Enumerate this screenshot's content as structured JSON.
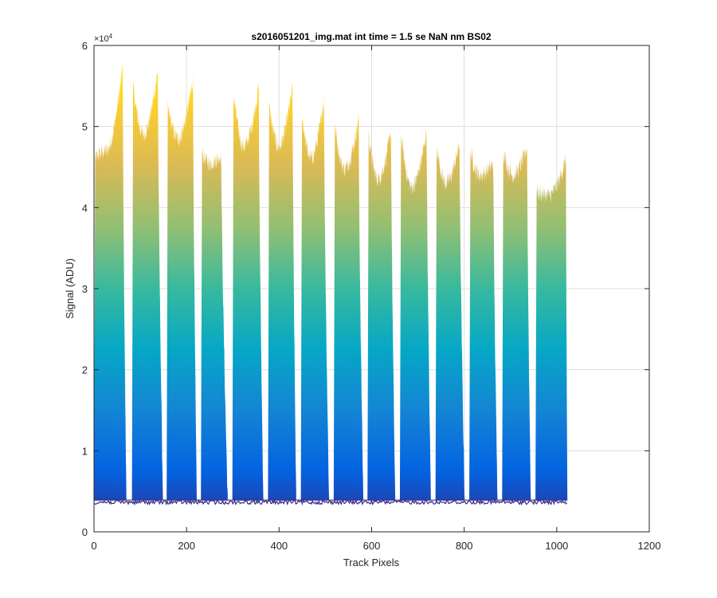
{
  "chart_data": {
    "type": "area",
    "title": "s2016051201_img.mat int time = 1.5 se  NaN nm BS02",
    "xlabel": "Track Pixels",
    "ylabel": "Signal (ADU)",
    "xlim": [
      0,
      1200
    ],
    "ylim": [
      0,
      60000
    ],
    "x_ticks": [
      0,
      200,
      400,
      600,
      800,
      1000,
      1200
    ],
    "x_tick_labels": [
      "0",
      "200",
      "400",
      "600",
      "800",
      "1000",
      "1200"
    ],
    "y_ticks": [
      0,
      10000,
      20000,
      30000,
      40000,
      50000,
      60000
    ],
    "y_tick_labels": [
      "0",
      "1",
      "2",
      "3",
      "4",
      "5",
      "6"
    ],
    "y_exponent_label": "×10",
    "y_exponent_power": "4",
    "grid": true,
    "colormap": "parula",
    "colormap_stops": [
      "#352a87",
      "#0363e1",
      "#1485d4",
      "#06a7c6",
      "#38b99e",
      "#92bf73",
      "#d9ba56",
      "#fcce2e",
      "#f9fb0e"
    ],
    "baseline": 3900,
    "signal_floor": 500,
    "segments": [
      {
        "start": 0,
        "end": 70,
        "peak_x": 62,
        "left": 46000,
        "min": 47000,
        "right": 57500
      },
      {
        "start": 82,
        "end": 149,
        "peak_x": 138,
        "left": 56000,
        "min": 49000,
        "right": 57000
      },
      {
        "start": 157,
        "end": 222,
        "peak_x": 214,
        "left": 53000,
        "min": 48500,
        "right": 56000
      },
      {
        "start": 231,
        "end": 289,
        "peak_x": 275,
        "left": 47000,
        "min": 45500,
        "right": 46500
      },
      {
        "start": 299,
        "end": 366,
        "peak_x": 356,
        "left": 55000,
        "min": 47500,
        "right": 55000
      },
      {
        "start": 376,
        "end": 437,
        "peak_x": 429,
        "left": 53500,
        "min": 47500,
        "right": 55000
      },
      {
        "start": 447,
        "end": 508,
        "peak_x": 497,
        "left": 52500,
        "min": 46000,
        "right": 53500
      },
      {
        "start": 518,
        "end": 582,
        "peak_x": 572,
        "left": 51000,
        "min": 44800,
        "right": 51000
      },
      {
        "start": 591,
        "end": 651,
        "peak_x": 642,
        "left": 50000,
        "min": 43500,
        "right": 49500
      },
      {
        "start": 661,
        "end": 728,
        "peak_x": 719,
        "left": 50000,
        "min": 42500,
        "right": 49500
      },
      {
        "start": 738,
        "end": 801,
        "peak_x": 790,
        "left": 48500,
        "min": 43000,
        "right": 48000
      },
      {
        "start": 811,
        "end": 872,
        "peak_x": 863,
        "left": 47500,
        "min": 44000,
        "right": 45500
      },
      {
        "start": 882,
        "end": 944,
        "peak_x": 936,
        "left": 47500,
        "min": 44000,
        "right": 47500
      },
      {
        "start": 954,
        "end": 1023,
        "peak_x": 1020,
        "left": 42000,
        "min": 41500,
        "right": 46000
      }
    ]
  }
}
